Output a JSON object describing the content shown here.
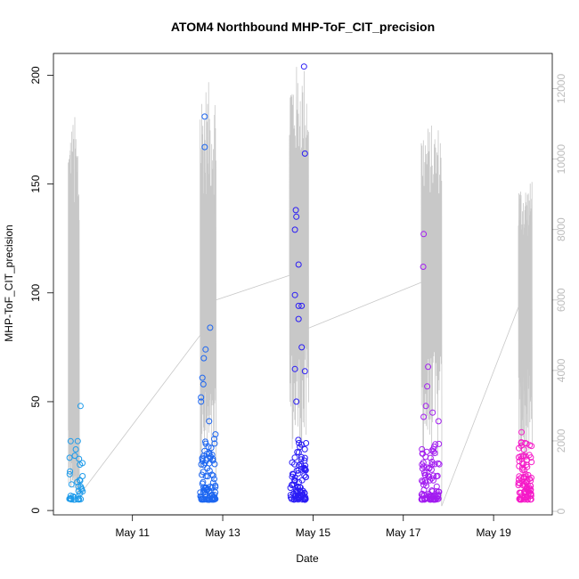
{
  "chart_data": {
    "type": "scatter",
    "title": "ATOM4 Northbound MHP-ToF_CIT_precision",
    "xlabel": "Date",
    "ylabel": "MHP-ToF_CIT_precision",
    "xlim": [
      9.25,
      20.3
    ],
    "ylim": [
      -2,
      210
    ],
    "y2lim": [
      -100,
      13000
    ],
    "x_ticks": [
      11,
      13,
      15,
      17,
      19
    ],
    "x_tick_labels": [
      "May 11",
      "May 13",
      "May 15",
      "May 17",
      "May 19"
    ],
    "y_ticks": [
      0,
      50,
      100,
      150,
      200
    ],
    "y_tick_labels": [
      "0",
      "50",
      "100",
      "150",
      "200"
    ],
    "y2_ticks": [
      0,
      2000,
      4000,
      6000,
      8000,
      10000,
      12000
    ],
    "y2_tick_labels": [
      "0",
      "2000",
      "4000",
      "6000",
      "8000",
      "10000",
      "12000"
    ],
    "grid": false,
    "colors": {
      "secondary_line": "#c8c8c8",
      "right_axis": "#bdbdbd",
      "point_gradient_start": "#1e9bea",
      "point_gradient_mid": "#2233ff",
      "point_gradient_end": "#ff22cc"
    },
    "points": {
      "clusters": [
        {
          "x_start": 9.6,
          "x_end": 9.9,
          "n": 35,
          "color": "#1e9bea",
          "outliers": [
            [
              9.85,
              48
            ],
            [
              9.83,
              14
            ],
            [
              9.65,
              12
            ]
          ]
        },
        {
          "x_start": 12.5,
          "x_end": 12.85,
          "n": 90,
          "color": "#1d66f0",
          "outliers": [
            [
              12.6,
              181
            ],
            [
              12.6,
              167
            ],
            [
              12.72,
              84
            ],
            [
              12.62,
              74
            ],
            [
              12.58,
              70
            ],
            [
              12.55,
              61
            ],
            [
              12.57,
              58
            ],
            [
              12.52,
              52
            ],
            [
              12.52,
              50
            ],
            [
              12.7,
              41
            ],
            [
              12.84,
              35
            ]
          ]
        },
        {
          "x_start": 14.5,
          "x_end": 14.85,
          "n": 90,
          "color": "#2a1cf5",
          "outliers": [
            [
              14.8,
              204
            ],
            [
              14.82,
              164
            ],
            [
              14.62,
              138
            ],
            [
              14.63,
              135
            ],
            [
              14.6,
              129
            ],
            [
              14.68,
              113
            ],
            [
              14.6,
              99
            ],
            [
              14.68,
              94
            ],
            [
              14.75,
              94
            ],
            [
              14.68,
              88
            ],
            [
              14.75,
              75
            ],
            [
              14.6,
              65
            ],
            [
              14.82,
              64
            ],
            [
              14.63,
              50
            ]
          ]
        },
        {
          "x_start": 17.4,
          "x_end": 17.8,
          "n": 90,
          "color": "#a21cf0",
          "outliers": [
            [
              17.45,
              127
            ],
            [
              17.44,
              112
            ],
            [
              17.55,
              66
            ],
            [
              17.53,
              57
            ],
            [
              17.5,
              48
            ],
            [
              17.65,
              45
            ],
            [
              17.45,
              43
            ],
            [
              17.78,
              41
            ]
          ]
        },
        {
          "x_start": 19.55,
          "x_end": 19.85,
          "n": 90,
          "color": "#f51ac8",
          "outliers": [
            [
              19.62,
              36
            ],
            [
              19.7,
              31
            ],
            [
              19.8,
              30
            ]
          ]
        }
      ]
    },
    "secondary_series": {
      "segments": [
        {
          "x_start": 9.58,
          "x_end": 9.82,
          "base": 2300,
          "peak": 11300,
          "end": 500
        },
        {
          "x_start": 12.5,
          "x_end": 12.85,
          "base": 5000,
          "peak": 12200,
          "end": 6000
        },
        {
          "x_start": 14.48,
          "x_end": 14.9,
          "base": 6700,
          "peak": 12700,
          "end": 5200
        },
        {
          "x_start": 17.4,
          "x_end": 17.85,
          "base": 6500,
          "peak": 11000,
          "end": 150
        },
        {
          "x_start": 19.55,
          "x_end": 19.85,
          "base": 5800,
          "peak": 9350,
          "end": 9350
        }
      ],
      "connectors": [
        [
          9.85,
          500,
          12.5,
          5000
        ],
        [
          12.85,
          6000,
          14.48,
          6700
        ],
        [
          14.9,
          5200,
          17.4,
          6500
        ],
        [
          17.85,
          150,
          19.55,
          5800
        ]
      ]
    }
  }
}
